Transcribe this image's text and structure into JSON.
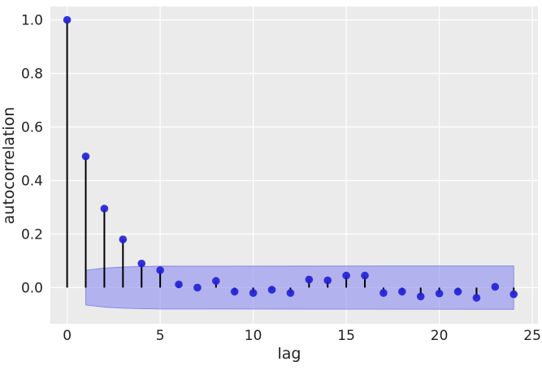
{
  "chart_data": {
    "type": "scatter",
    "xlabel": "lag",
    "ylabel": "autocorrelation",
    "xlim": [
      -0.9,
      25.3
    ],
    "ylim": [
      -0.135,
      1.05
    ],
    "xticks": [
      0,
      5,
      10,
      15,
      20,
      25
    ],
    "xtick_labels": [
      "0",
      "5",
      "10",
      "15",
      "20",
      "25"
    ],
    "yticks": [
      0.0,
      0.2,
      0.4,
      0.6,
      0.8,
      1.0
    ],
    "ytick_labels": [
      "0.0",
      "0.2",
      "0.4",
      "0.6",
      "0.8",
      "1.0"
    ],
    "grid": true,
    "series": [
      {
        "x": [
          0,
          1,
          2,
          3,
          4,
          5,
          6,
          7,
          8,
          9,
          10,
          11,
          12,
          13,
          14,
          15,
          16,
          17,
          18,
          19,
          20,
          21,
          22,
          23,
          24
        ],
        "values": [
          1.0,
          0.49,
          0.295,
          0.18,
          0.09,
          0.065,
          0.012,
          0.0,
          0.025,
          -0.015,
          -0.02,
          -0.008,
          -0.02,
          0.03,
          0.027,
          0.045,
          0.045,
          -0.02,
          -0.015,
          -0.033,
          -0.022,
          -0.015,
          -0.038,
          0.003,
          -0.025
        ]
      }
    ],
    "confidence_band": {
      "x": [
        1,
        2,
        3,
        4,
        5,
        24
      ],
      "upper": [
        0.065,
        0.073,
        0.077,
        0.079,
        0.08,
        0.081
      ],
      "lower": [
        -0.065,
        -0.073,
        -0.077,
        -0.079,
        -0.08,
        -0.081
      ]
    },
    "colors": {
      "background": "#ebebeb",
      "grid": "#ffffff",
      "marker": "#2222d8",
      "stem": "#000000",
      "band_fill": "#8c8cf0",
      "band_edge": "#7a7ae6"
    }
  }
}
